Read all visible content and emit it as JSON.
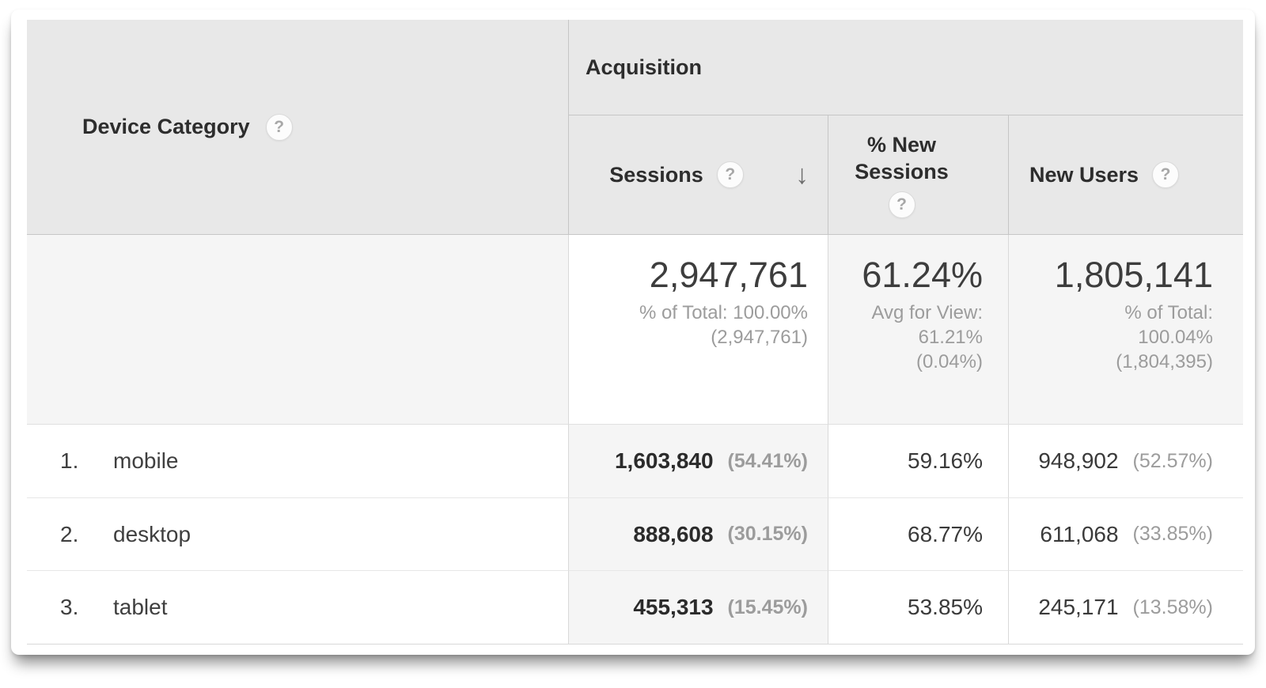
{
  "icons": {
    "help": "?",
    "sort_desc": "↓"
  },
  "colors": {
    "header_bg": "#e8e8e8",
    "summary_bg": "#f5f5f5",
    "sorted_column_bg": "#f5f5f5",
    "strong_border": "#c6c6c6",
    "light_border": "#e7e7e7",
    "text_dark": "#2d2d2d",
    "text_gray": "#9c9c9c"
  },
  "table": {
    "dimension_header": "Device Category",
    "group_header": "Acquisition",
    "metric_headers": {
      "sessions": "Sessions",
      "pct_new_sessions": "% New Sessions",
      "new_users": "New Users"
    },
    "summary": {
      "sessions_value": "2,947,761",
      "sessions_line1": "% of Total: 100.00%",
      "sessions_line2": "(2,947,761)",
      "pct_new_value": "61.24%",
      "pct_new_line1": "Avg for View:",
      "pct_new_line2": "61.21%",
      "pct_new_line3": "(0.04%)",
      "new_users_value": "1,805,141",
      "new_users_line1": "% of Total:",
      "new_users_line2": "100.04%",
      "new_users_line3": "(1,804,395)"
    },
    "rows": [
      {
        "rank": "1.",
        "device": "mobile",
        "sessions": "1,603,840",
        "sessions_pct": "(54.41%)",
        "pct_new_sessions": "59.16%",
        "new_users": "948,902",
        "new_users_pct": "(52.57%)"
      },
      {
        "rank": "2.",
        "device": "desktop",
        "sessions": "888,608",
        "sessions_pct": "(30.15%)",
        "pct_new_sessions": "68.77%",
        "new_users": "611,068",
        "new_users_pct": "(33.85%)"
      },
      {
        "rank": "3.",
        "device": "tablet",
        "sessions": "455,313",
        "sessions_pct": "(15.45%)",
        "pct_new_sessions": "53.85%",
        "new_users": "245,171",
        "new_users_pct": "(13.58%)"
      }
    ]
  }
}
